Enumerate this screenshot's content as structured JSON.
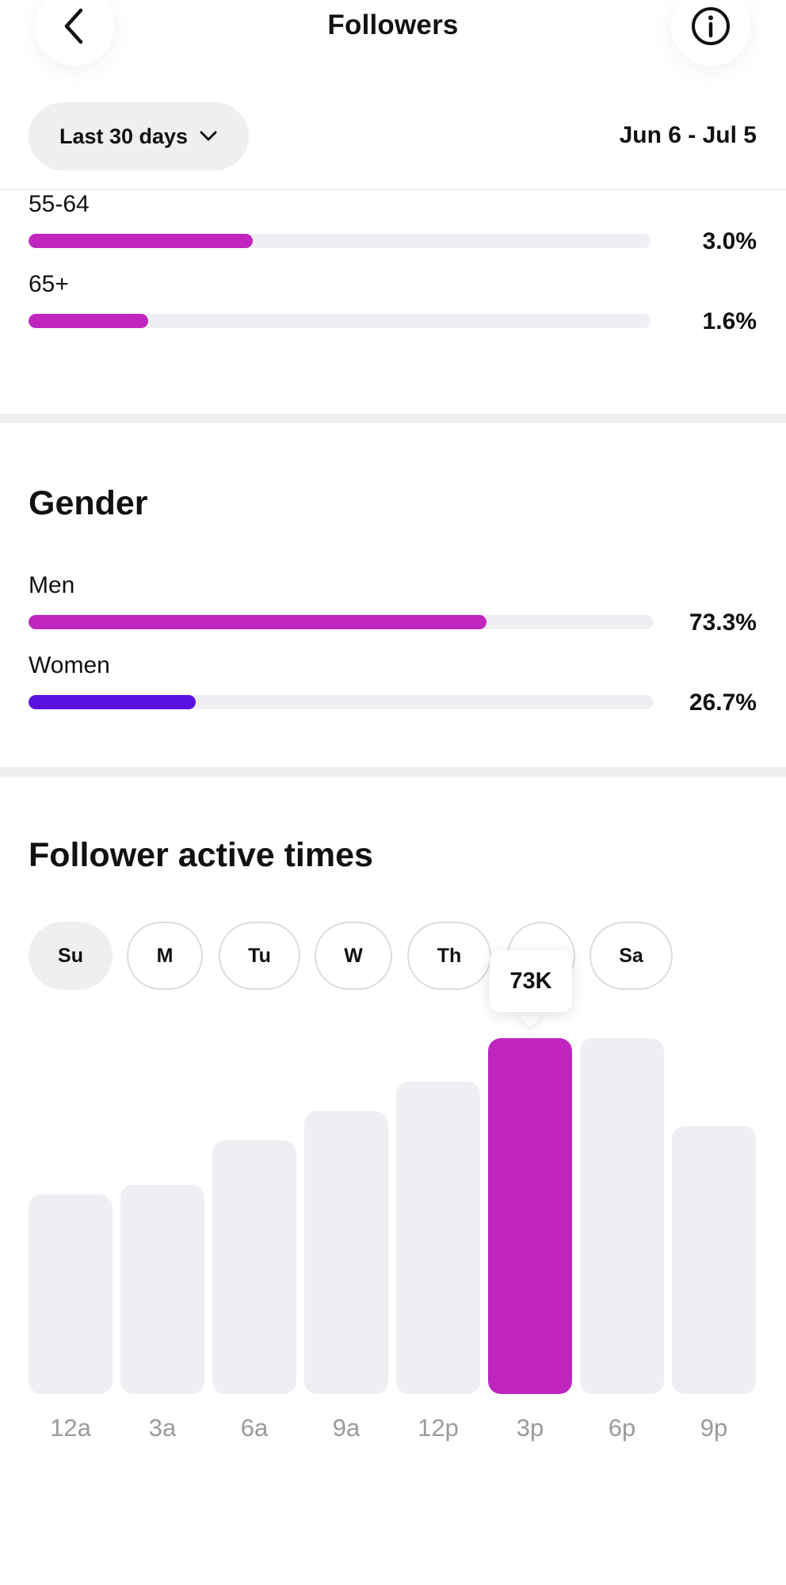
{
  "header": {
    "title": "Followers",
    "back_icon": "chevron-left-icon",
    "info_icon": "info-icon"
  },
  "filter": {
    "range_label": "Last 30 days",
    "dropdown_icon": "chevron-down-icon",
    "date_range": "Jun 6 - Jul 5"
  },
  "age": {
    "items": [
      {
        "label": "55-64",
        "percent": "3.0%",
        "value": 3.0
      },
      {
        "label": "65+",
        "percent": "1.6%",
        "value": 1.6
      }
    ],
    "color": "#c026bd"
  },
  "gender": {
    "title": "Gender",
    "items": [
      {
        "label": "Men",
        "percent": "73.3%",
        "value": 73.3,
        "color": "#c026bd"
      },
      {
        "label": "Women",
        "percent": "26.7%",
        "value": 26.7,
        "color": "#5a12e0"
      }
    ]
  },
  "active_times": {
    "title": "Follower active times",
    "days": [
      "Su",
      "M",
      "Tu",
      "W",
      "Th",
      "",
      "Sa"
    ],
    "selected_day": "Su",
    "tooltip": "73K"
  },
  "chart_data": {
    "type": "bar",
    "categories": [
      "12a",
      "3a",
      "6a",
      "9a",
      "12p",
      "3p",
      "6p",
      "9p"
    ],
    "values": [
      41,
      43,
      52,
      58,
      64,
      73,
      73,
      55
    ],
    "highlight_index": 5,
    "highlight_color": "#c026bd",
    "bar_color": "#efeff3",
    "ylim": [
      0,
      73
    ]
  }
}
